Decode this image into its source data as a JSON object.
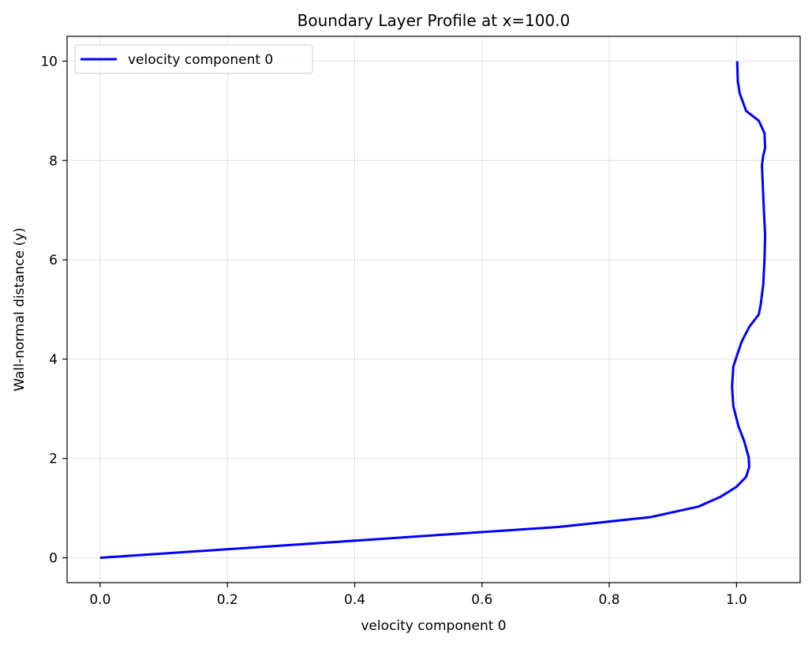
{
  "chart_data": {
    "type": "line",
    "title": "Boundary Layer Profile at x=100.0",
    "xlabel": "velocity component 0",
    "ylabel": "Wall-normal distance (y)",
    "xlim": [
      -0.052,
      1.1
    ],
    "ylim": [
      -0.5,
      10.5
    ],
    "xticks": [
      0.0,
      0.2,
      0.4,
      0.6,
      0.8,
      1.0
    ],
    "xtick_labels": [
      "0.0",
      "0.2",
      "0.4",
      "0.6",
      "0.8",
      "1.0"
    ],
    "yticks": [
      0,
      2,
      4,
      6,
      8,
      10
    ],
    "ytick_labels": [
      "0",
      "2",
      "4",
      "6",
      "8",
      "10"
    ],
    "grid": true,
    "legend_position": "top-left",
    "series": [
      {
        "name": "velocity component 0",
        "color": "#0000ff",
        "x": [
          0.0,
          0.72,
          0.865,
          0.94,
          0.975,
          1.0,
          1.015,
          1.02,
          1.019,
          1.012,
          1.003,
          0.995,
          0.993,
          0.995,
          1.0,
          1.008,
          1.02,
          1.035,
          1.038,
          1.042,
          1.044,
          1.045,
          1.043,
          1.041,
          1.04,
          1.042,
          1.045,
          1.044,
          1.035,
          1.015,
          1.005,
          1.002,
          1.001
        ],
        "y": [
          0.0,
          0.62,
          0.82,
          1.03,
          1.23,
          1.43,
          1.63,
          1.83,
          2.03,
          2.35,
          2.65,
          3.05,
          3.45,
          3.85,
          4.05,
          4.35,
          4.65,
          4.9,
          5.1,
          5.5,
          6.0,
          6.5,
          7.0,
          7.6,
          7.9,
          8.1,
          8.25,
          8.55,
          8.8,
          9.0,
          9.35,
          9.6,
          10.0
        ]
      }
    ]
  }
}
